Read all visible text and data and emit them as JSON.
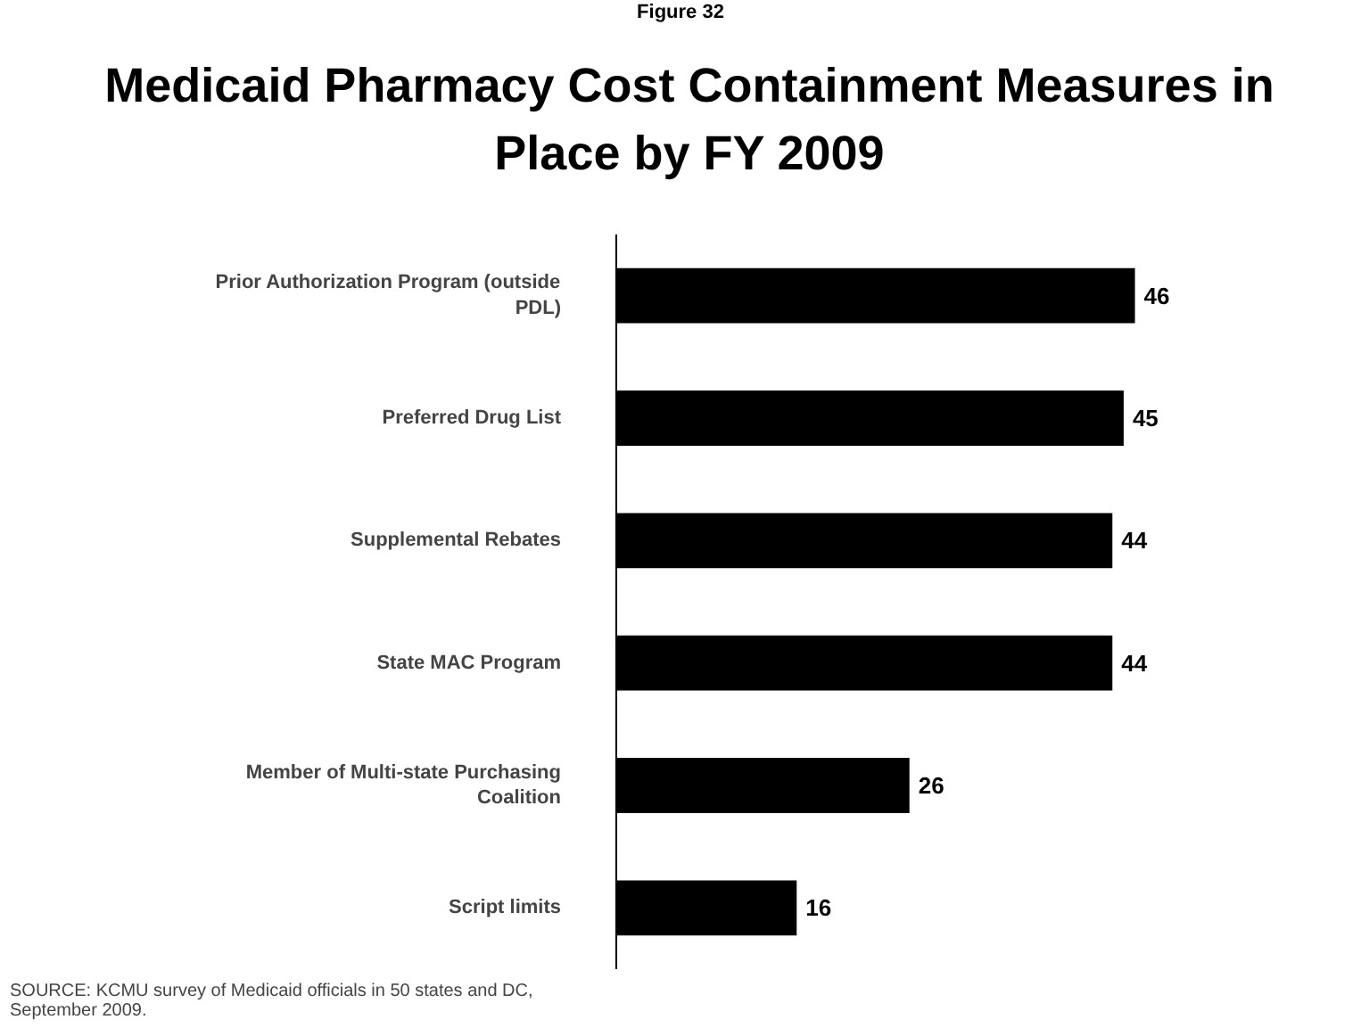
{
  "chart_data": {
    "type": "bar",
    "orientation": "horizontal",
    "subtitle": "Figure 32",
    "title": "Medicaid Pharmacy Cost Containment Measures in Place by FY 2009",
    "categories": [
      "Prior Authorization Program (outside PDL)",
      "Preferred Drug List",
      "Supplemental Rebates",
      "State MAC Program",
      "Member of Multi-state Purchasing Coalition",
      "Script limits"
    ],
    "values": [
      46,
      45,
      44,
      44,
      26,
      16
    ],
    "color": "#000000",
    "data_labels": true,
    "grid": false,
    "annotations": [
      "SOURCE: KCMU survey of Medicaid officials in 50 states and DC, September 2009."
    ]
  }
}
